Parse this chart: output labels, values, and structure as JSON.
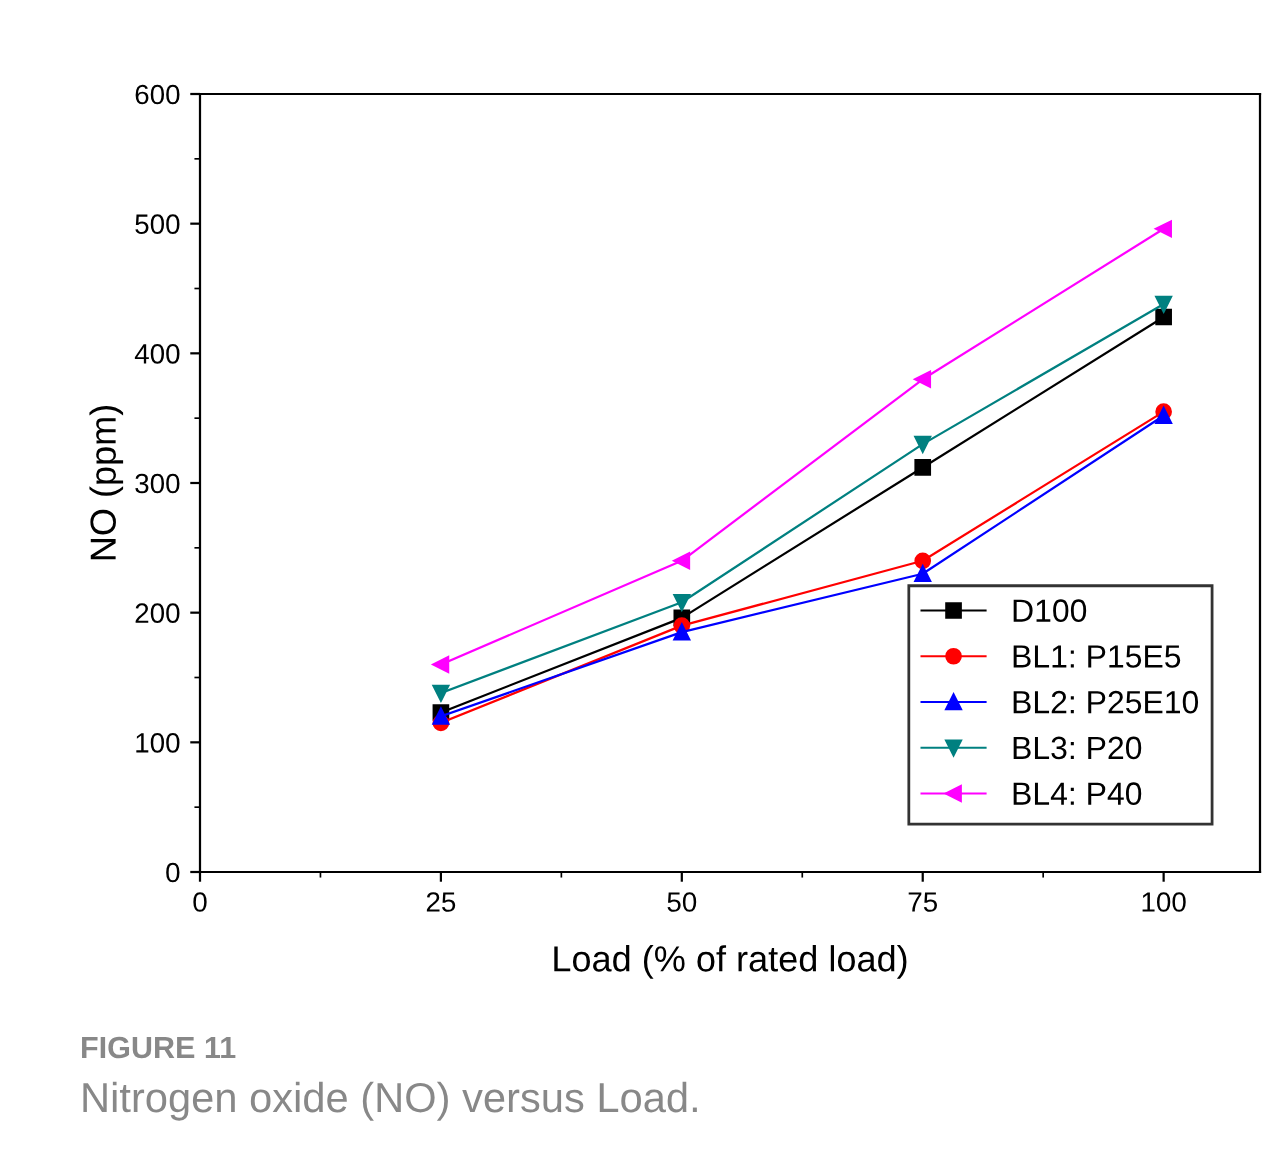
{
  "chart_data": {
    "type": "line",
    "xlabel": "Load (% of rated load)",
    "ylabel": "NO (ppm)",
    "x": [
      25,
      50,
      75,
      100
    ],
    "series": [
      {
        "name": "D100",
        "color": "#000000",
        "marker": "square",
        "values": [
          123,
          196,
          312,
          428
        ]
      },
      {
        "name": "BL1: P15E5",
        "color": "#ff0000",
        "marker": "circle",
        "values": [
          115,
          190,
          240,
          355
        ]
      },
      {
        "name": "BL2: P25E10",
        "color": "#0000ff",
        "marker": "triangle",
        "values": [
          120,
          185,
          230,
          352
        ]
      },
      {
        "name": "BL3: P20",
        "color": "#008080",
        "marker": "triangle_down",
        "values": [
          138,
          208,
          330,
          438
        ]
      },
      {
        "name": "BL4: P40",
        "color": "#ff00ff",
        "marker": "triangle_left",
        "values": [
          160,
          240,
          380,
          496
        ]
      }
    ],
    "xlim": [
      0,
      110
    ],
    "xticks": [
      0,
      25,
      50,
      75,
      100
    ],
    "ylim": [
      0,
      600
    ],
    "yticks": [
      0,
      100,
      200,
      300,
      400,
      500,
      600
    ],
    "grid": false,
    "legend": "bottom right",
    "line_style": "solid",
    "annotations": [
      "FIGURE 11",
      "Nitrogen oxide (NO) versus Load."
    ]
  }
}
